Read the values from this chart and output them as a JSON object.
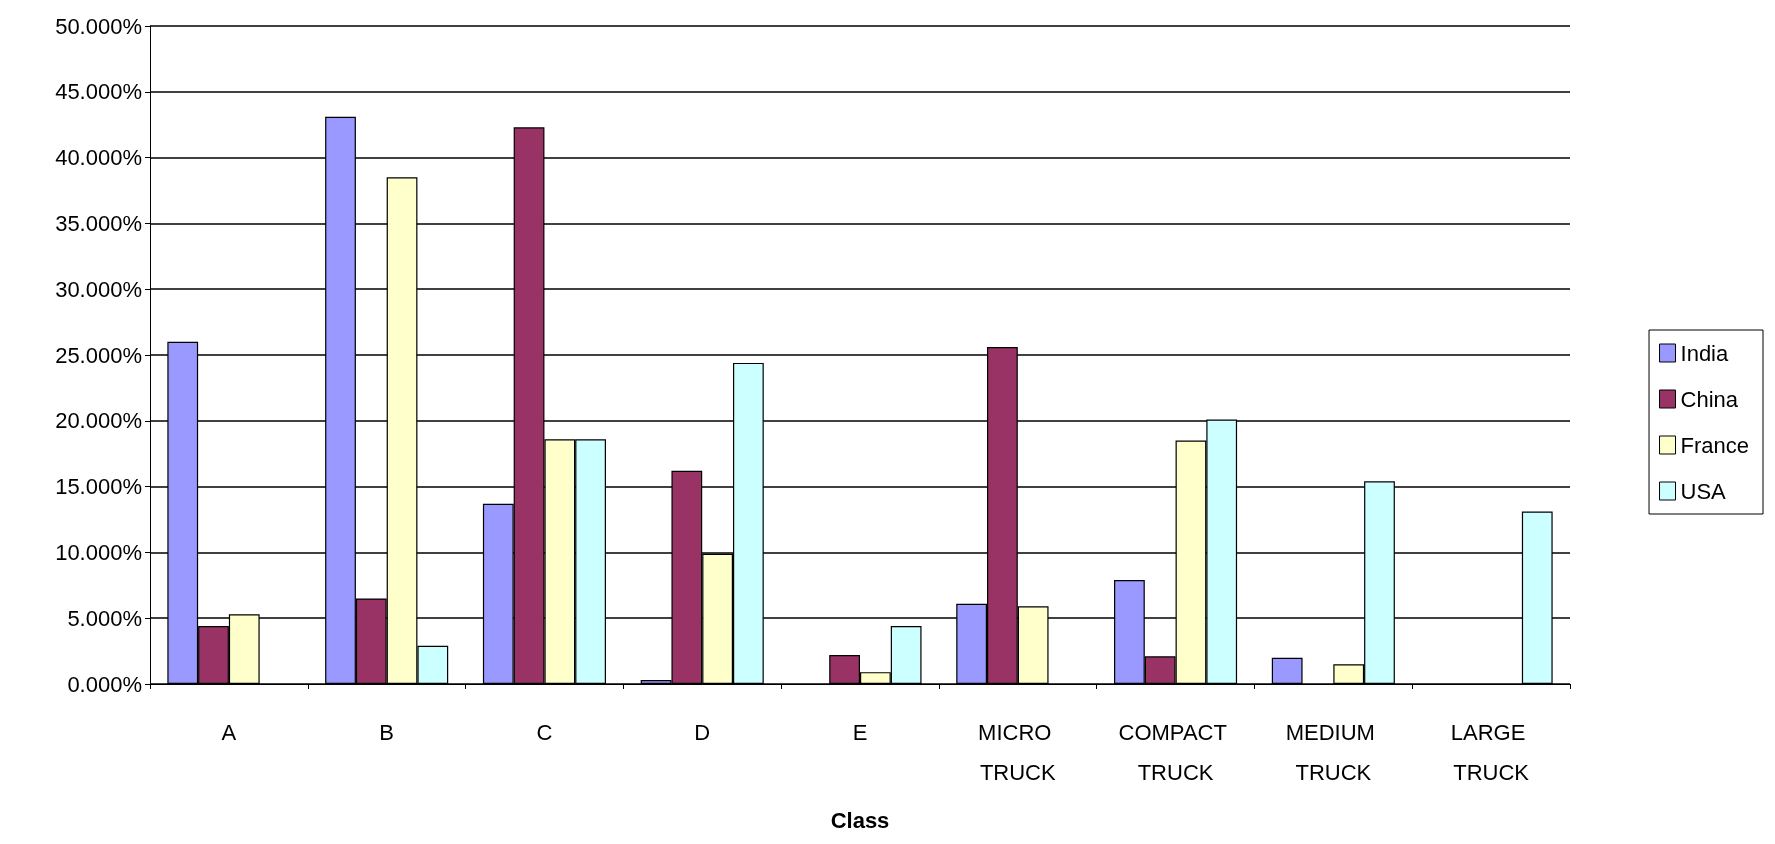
{
  "chart_data": {
    "type": "bar",
    "xlabel": "Class",
    "categories": [
      "A",
      "B",
      "C",
      "D",
      "E",
      "MICRO TRUCK",
      "COMPACT TRUCK",
      "MEDIUM TRUCK",
      "LARGE TRUCK"
    ],
    "series": [
      {
        "name": "India",
        "color": "#9999ff",
        "values": [
          26.0,
          43.1,
          13.7,
          0.3,
          null,
          6.1,
          7.9,
          2.0,
          null
        ]
      },
      {
        "name": "China",
        "color": "#993366",
        "values": [
          4.4,
          6.5,
          42.3,
          16.2,
          2.2,
          25.6,
          2.1,
          null,
          null
        ]
      },
      {
        "name": "France",
        "color": "#ffffcc",
        "values": [
          5.3,
          38.5,
          18.6,
          9.9,
          0.9,
          5.9,
          18.5,
          1.5,
          null
        ]
      },
      {
        "name": "USA",
        "color": "#ccffff",
        "values": [
          null,
          2.9,
          18.6,
          24.4,
          4.4,
          null,
          20.1,
          15.4,
          13.1
        ]
      }
    ],
    "ylim": [
      0,
      50
    ],
    "yticks": [
      {
        "value": 0,
        "label": "0.000%"
      },
      {
        "value": 5,
        "label": "5.000%"
      },
      {
        "value": 10,
        "label": "10.000%"
      },
      {
        "value": 15,
        "label": "15.000%"
      },
      {
        "value": 20,
        "label": "20.000%"
      },
      {
        "value": 25,
        "label": "25.000%"
      },
      {
        "value": 30,
        "label": "30.000%"
      },
      {
        "value": 35,
        "label": "35.000%"
      },
      {
        "value": 40,
        "label": "40.000%"
      },
      {
        "value": 45,
        "label": "45.000%"
      },
      {
        "value": 50,
        "label": "50.000%"
      }
    ],
    "grid": "y",
    "legend": "right"
  }
}
